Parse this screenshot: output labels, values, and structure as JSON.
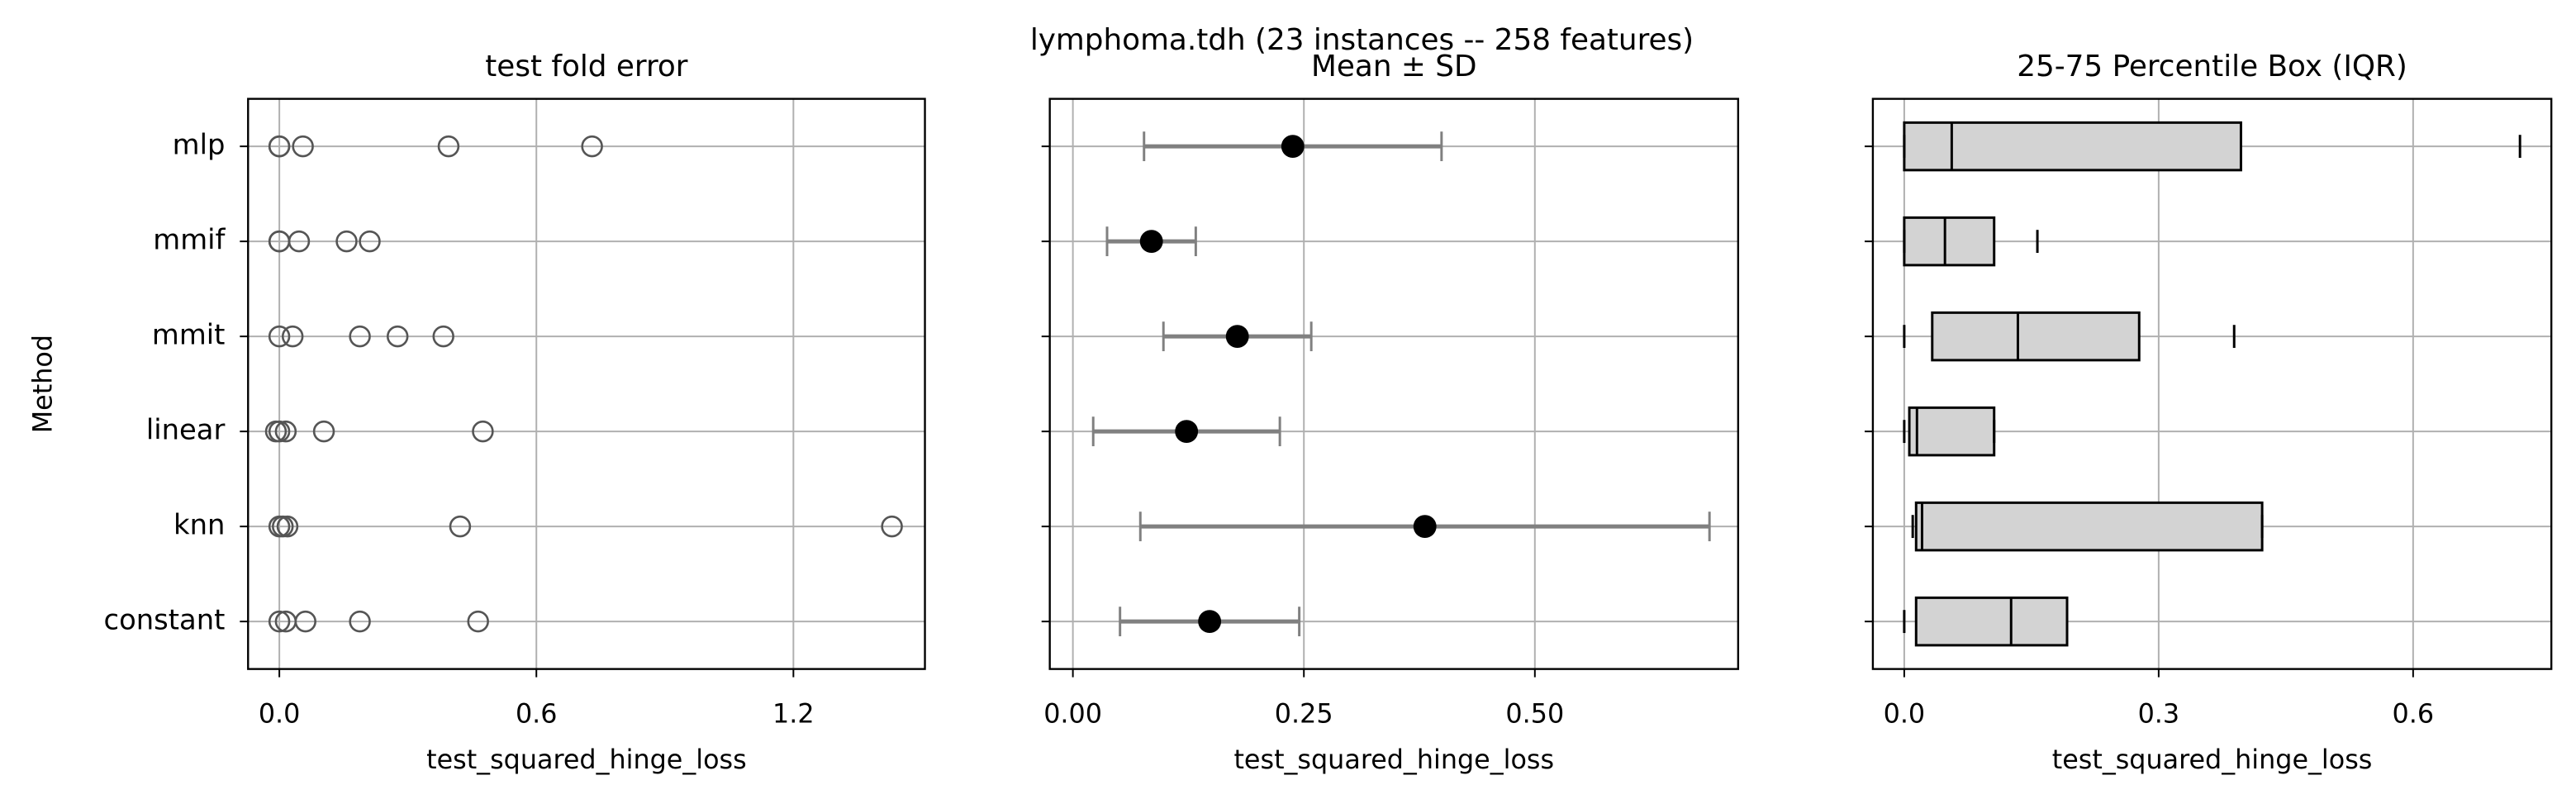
{
  "title": "lymphoma.tdh (23 instances -- 258 features)",
  "chart_data": [
    {
      "type": "scatter",
      "title": "test fold error",
      "xlabel": "test_squared_hinge_loss",
      "ylabel": "Method",
      "categories": [
        "mlp",
        "mmif",
        "mmit",
        "linear",
        "knn",
        "constant"
      ],
      "values": [
        [
          0.0,
          0.0,
          0.055,
          0.395,
          0.73
        ],
        [
          0.0,
          0.0,
          0.046,
          0.157,
          0.211
        ],
        [
          0.0,
          0.031,
          0.188,
          0.276,
          0.383
        ],
        [
          -0.008,
          0.0,
          0.015,
          0.104,
          0.475
        ],
        [
          0.0,
          0.008,
          0.019,
          0.422,
          1.43
        ],
        [
          0.0,
          0.015,
          0.061,
          0.188,
          0.464
        ]
      ],
      "color": "#555555",
      "xlim": [
        -0.073,
        1.507
      ],
      "xticks": [
        {
          "value": 0,
          "label": "0.0"
        },
        0.6,
        1.2
      ],
      "grid": true
    },
    {
      "type": "errorbar",
      "title": "Mean ± SD",
      "xlabel": "test_squared_hinge_loss",
      "values": [
        0.238,
        0.085,
        0.178,
        0.123,
        0.381,
        0.148
      ],
      "errors": [
        0.161,
        0.048,
        0.08,
        0.101,
        0.308,
        0.097
      ],
      "color": "#000000",
      "error_color": "#808080",
      "xlim": [
        -0.025,
        0.72
      ],
      "xticks": [
        {
          "value": 0,
          "label": "0.00"
        },
        0.25,
        {
          "value": 0.5,
          "label": "0.50"
        }
      ],
      "grid": true
    },
    {
      "type": "box",
      "title": "25-75 Percentile Box (IQR)",
      "xlabel": "test_squared_hinge_loss",
      "min": [
        0.0,
        0.0,
        0.0,
        0.0,
        0.01,
        0.0
      ],
      "q1": [
        0.0,
        0.0,
        0.033,
        0.006,
        0.014,
        0.014
      ],
      "median": [
        0.056,
        0.048,
        0.134,
        0.015,
        0.021,
        0.126
      ],
      "q3": [
        0.397,
        0.106,
        0.277,
        0.106,
        0.422,
        0.192
      ],
      "max": [
        0.726,
        0.157,
        0.389,
        0.106,
        0.422,
        0.192
      ],
      "color": "#d3d3d3",
      "xlim": [
        -0.037,
        0.763
      ],
      "xticks": [
        {
          "value": 0,
          "label": "0.0"
        },
        0.3,
        0.6
      ],
      "grid": true
    }
  ]
}
